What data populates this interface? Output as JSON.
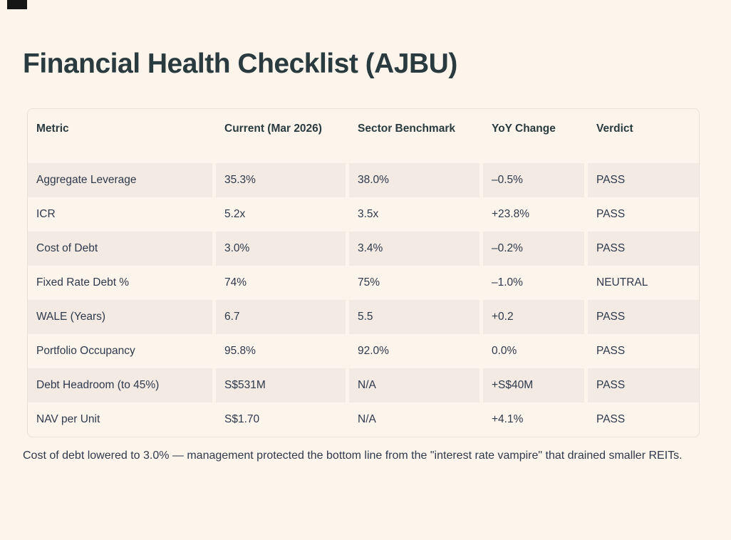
{
  "page": {
    "title": "Financial Health Checklist (AJBU)",
    "footnote": "Cost of debt lowered to 3.0% — management protected the bottom line from the \"interest rate vampire\" that drained smaller REITs."
  },
  "colors": {
    "background": "#fdf4ec",
    "row_stripe": "#f2eae3",
    "table_border": "#eae1d8",
    "title_text": "#2a3b40",
    "body_text": "#2e394b",
    "corner_artifact": "#161616"
  },
  "table": {
    "columns": [
      "Metric",
      "Current (Mar 2026)",
      "Sector Benchmark",
      "YoY Change",
      "Verdict"
    ],
    "rows": [
      [
        "Aggregate Leverage",
        "35.3%",
        "38.0%",
        "–0.5%",
        "PASS"
      ],
      [
        "ICR",
        "5.2x",
        "3.5x",
        "+23.8%",
        "PASS"
      ],
      [
        "Cost of Debt",
        "3.0%",
        "3.4%",
        "–0.2%",
        "PASS"
      ],
      [
        "Fixed Rate Debt %",
        "74%",
        "75%",
        "–1.0%",
        "NEUTRAL"
      ],
      [
        "WALE (Years)",
        "6.7",
        "5.5",
        "+0.2",
        "PASS"
      ],
      [
        "Portfolio Occupancy",
        "95.8%",
        "92.0%",
        "0.0%",
        "PASS"
      ],
      [
        "Debt Headroom (to 45%)",
        "S$531M",
        "N/A",
        "+S$40M",
        "PASS"
      ],
      [
        "NAV per Unit",
        "S$1.70",
        "N/A",
        "+4.1%",
        "PASS"
      ]
    ]
  }
}
